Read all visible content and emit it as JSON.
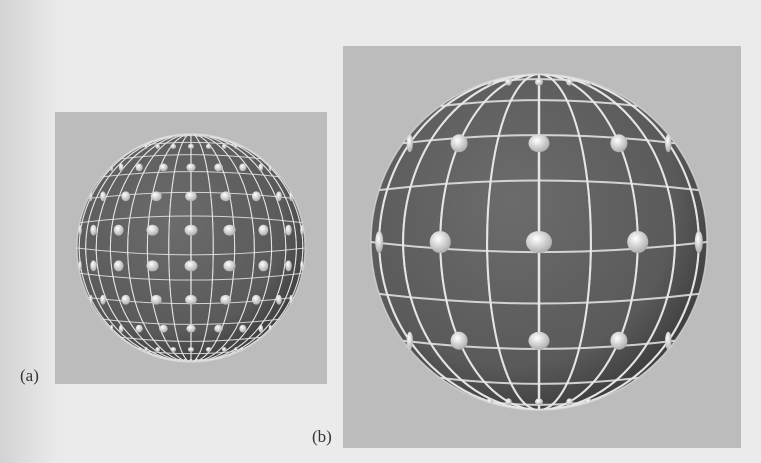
{
  "figure": {
    "panels": [
      {
        "label": "(a)",
        "grid": {
          "meridians": 16,
          "parallels": 14,
          "dot_rows": 10,
          "dot_cols": 9
        }
      },
      {
        "label": "(b)",
        "grid": {
          "meridians": 10,
          "parallels": 10,
          "dot_rows": 5,
          "dot_cols": 5
        }
      }
    ]
  },
  "colors": {
    "panel_background": "#bcbcbc",
    "sphere_body": "#5a5a5a",
    "grid_line": "#e8e8e8",
    "dot": "#d9d9d9"
  }
}
